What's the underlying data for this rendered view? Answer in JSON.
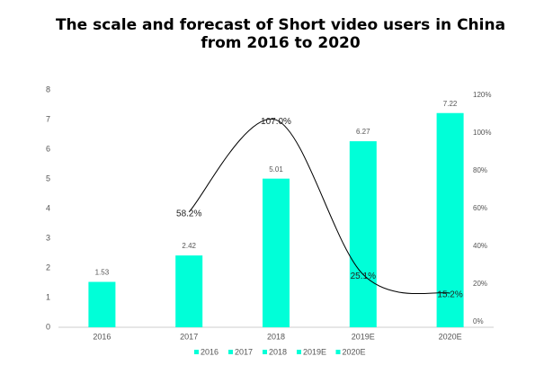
{
  "chart_data": {
    "type": "bar",
    "title": [
      "The scale and forecast of Short video users in China",
      "from 2016 to 2020"
    ],
    "categories": [
      "2016",
      "2017",
      "2018",
      "2019E",
      "2020E"
    ],
    "series": [
      {
        "type": "bar",
        "color": "#00ffd8",
        "values": [
          1.53,
          2.42,
          5.01,
          6.27,
          7.22
        ]
      },
      {
        "type": "line",
        "axis": "y2",
        "color": "#000000",
        "values": [
          null,
          58.2,
          107.0,
          25.1,
          15.2
        ],
        "value_labels": [
          null,
          "58.2%",
          "107.0%",
          "25.1%",
          "15.2%"
        ]
      }
    ],
    "ylim": [
      0,
      8
    ],
    "yticks": [
      0,
      1,
      2,
      3,
      4,
      5,
      6,
      7,
      8
    ],
    "y2lim": [
      0,
      120
    ],
    "y2ticks": [
      {
        "value": 0,
        "label": "0%"
      },
      {
        "value": 20,
        "label": "20%"
      },
      {
        "value": 40,
        "label": "40%"
      },
      {
        "value": 60,
        "label": "60%"
      },
      {
        "value": 80,
        "label": "80%"
      },
      {
        "value": 100,
        "label": "100%"
      },
      {
        "value": 120,
        "label": "120%"
      }
    ],
    "legend": "bottom",
    "grid": false
  }
}
